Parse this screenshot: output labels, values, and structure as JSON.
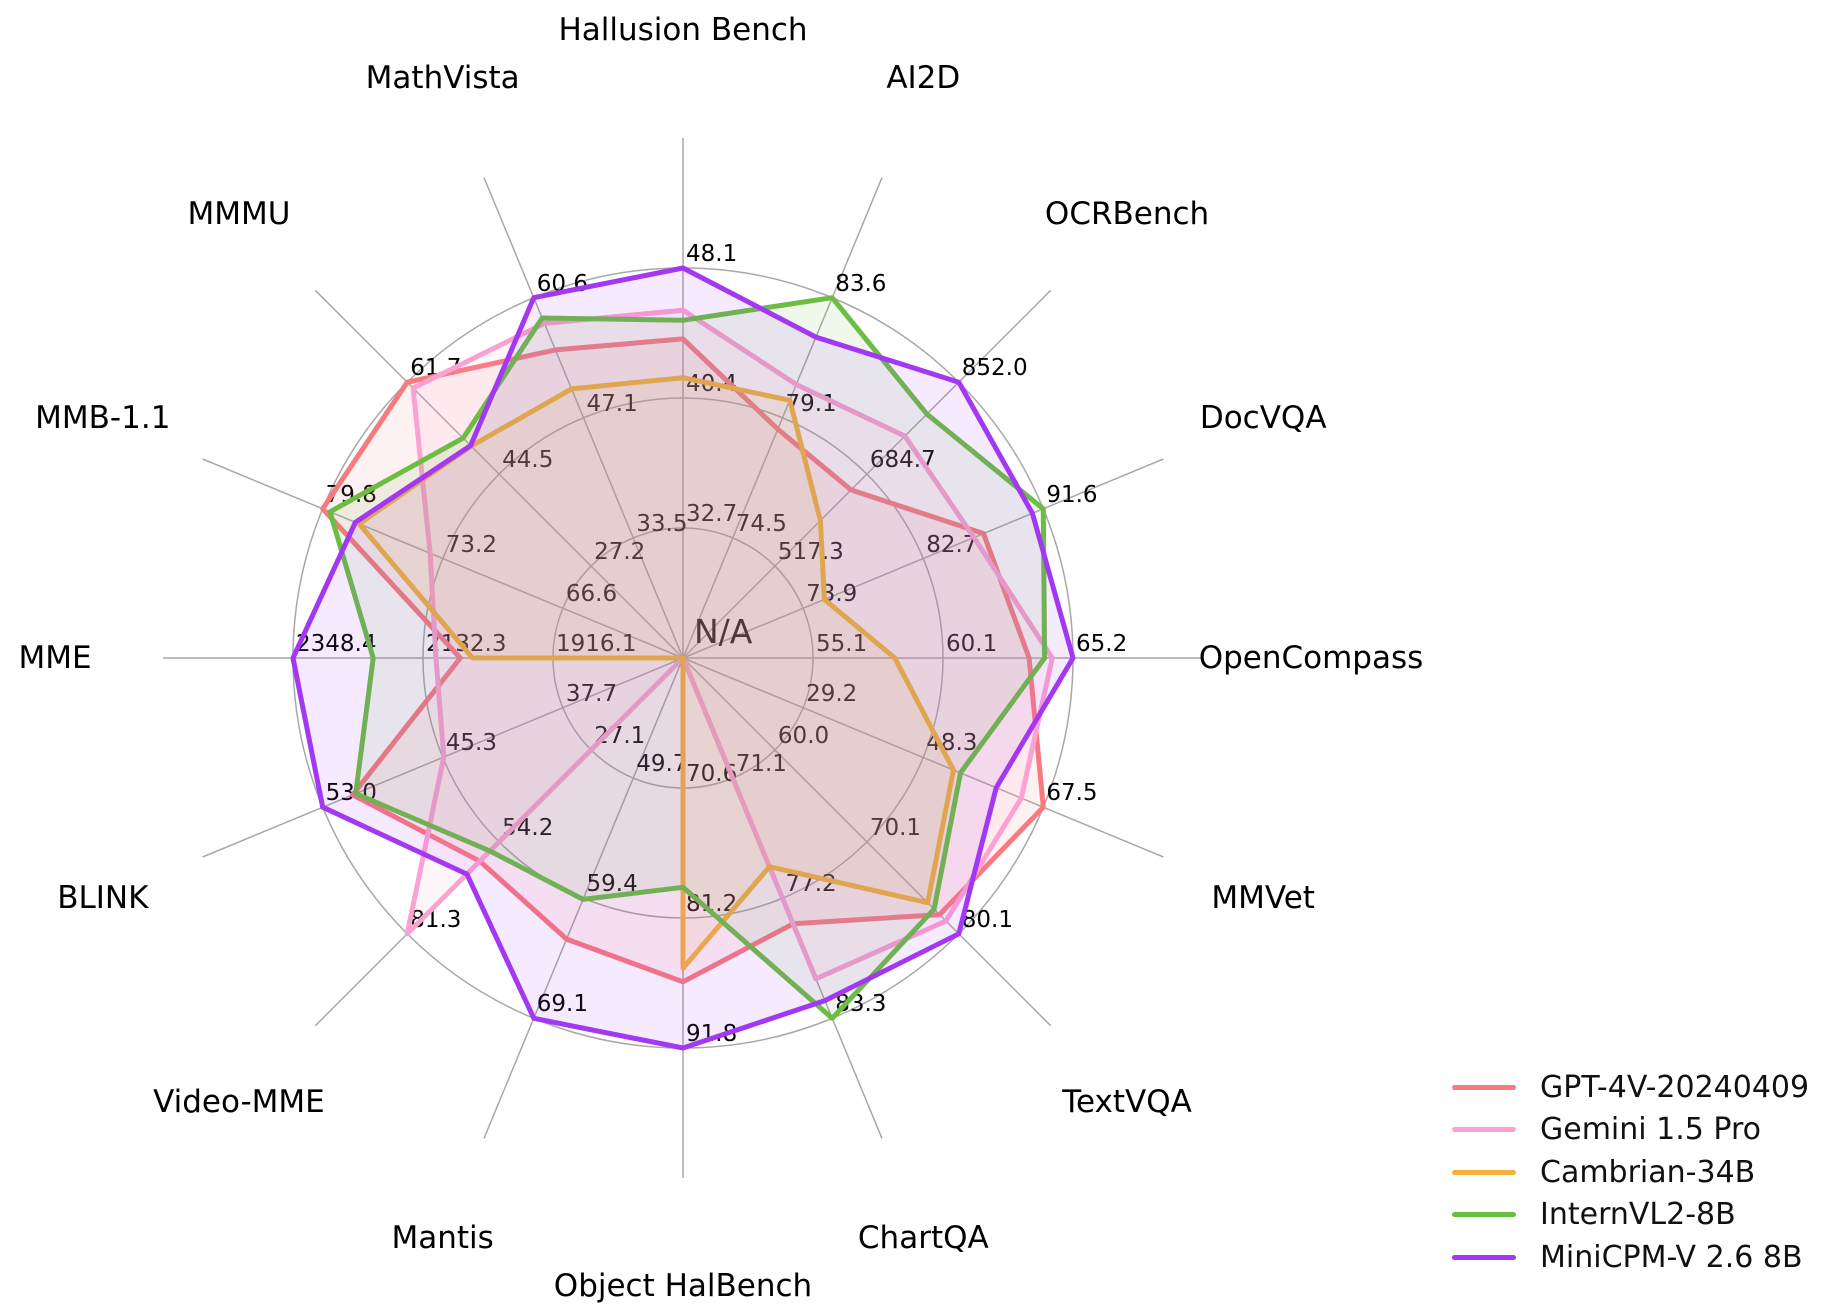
{
  "chart_data": {
    "type": "radar",
    "center_label": "N/A",
    "grid": true,
    "num_rings": 3,
    "legend_position": "lower right",
    "axes": [
      {
        "label": "Hallusion Bench",
        "ticks": [
          "32.7",
          "40.4",
          "48.1"
        ]
      },
      {
        "label": "AI2D",
        "ticks": [
          "74.5",
          "79.1",
          "83.6"
        ]
      },
      {
        "label": "OCRBench",
        "ticks": [
          "517.3",
          "684.7",
          "852.0"
        ]
      },
      {
        "label": "DocVQA",
        "ticks": [
          "73.9",
          "82.7",
          "91.6"
        ]
      },
      {
        "label": "OpenCompass",
        "ticks": [
          "55.1",
          "60.1",
          "65.2"
        ]
      },
      {
        "label": "MMVet",
        "ticks": [
          "29.2",
          "48.3",
          "67.5"
        ]
      },
      {
        "label": "TextVQA",
        "ticks": [
          "60.0",
          "70.1",
          "80.1"
        ]
      },
      {
        "label": "ChartQA",
        "ticks": [
          "71.1",
          "77.2",
          "83.3"
        ]
      },
      {
        "label": "Object HalBench",
        "ticks": [
          "70.6",
          "81.2",
          "91.8"
        ]
      },
      {
        "label": "Mantis",
        "ticks": [
          "49.7",
          "59.4",
          "69.1"
        ]
      },
      {
        "label": "Video-MME",
        "ticks": [
          "27.1",
          "54.2",
          "81.3"
        ]
      },
      {
        "label": "BLINK",
        "ticks": [
          "37.7",
          "45.3",
          "53.0"
        ]
      },
      {
        "label": "MME",
        "ticks": [
          "1916.1",
          "2132.3",
          "2348.4"
        ]
      },
      {
        "label": "MMB-1.1",
        "ticks": [
          "66.6",
          "73.2",
          "79.8"
        ]
      },
      {
        "label": "MMMU",
        "ticks": [
          "27.2",
          "44.5",
          "61.7"
        ]
      },
      {
        "label": "MathVista",
        "ticks": [
          "33.5",
          "47.1",
          "60.6"
        ]
      }
    ],
    "series": [
      {
        "name": "GPT-4V-20240409",
        "color": "#f8797e",
        "values": [
          43.9,
          78.6,
          656.0,
          87.2,
          63.5,
          67.5,
          78.0,
          78.5,
          86.4,
          62.7,
          59.9,
          51.1,
          2070.2,
          79.8,
          61.7,
          54.7
        ]
      },
      {
        "name": "Gemini 1.5 Pro",
        "color": "#fca2d2",
        "values": [
          45.6,
          80.3,
          754.0,
          86.5,
          64.4,
          64.0,
          78.7,
          81.3,
          null,
          null,
          81.3,
          45.3,
          2110.6,
          73.9,
          60.6,
          57.7
        ]
      },
      {
        "name": "Cambrian-34B",
        "color": "#f4b13e",
        "values": [
          41.6,
          79.7,
          600.0,
          75.5,
          58.3,
          53.2,
          76.7,
          75.6,
          85.3,
          null,
          null,
          null,
          2049.9,
          77.8,
          49.7,
          50.3
        ]
      },
      {
        "name": "InternVL2-8B",
        "color": "#6cbe43",
        "values": [
          45.0,
          83.6,
          794.0,
          91.6,
          64.1,
          54.3,
          77.4,
          83.3,
          78.7,
          59.5,
          56.9,
          50.9,
          2215.1,
          79.4,
          51.2,
          58.3
        ]
      },
      {
        "name": "MiniCPM-V 2.6 8B",
        "color": "#a238f1",
        "values": [
          48.1,
          82.1,
          852.0,
          90.8,
          65.2,
          60.0,
          80.1,
          82.4,
          91.8,
          69.1,
          63.7,
          53.0,
          2348.4,
          78.0,
          49.8,
          60.6
        ]
      }
    ]
  }
}
